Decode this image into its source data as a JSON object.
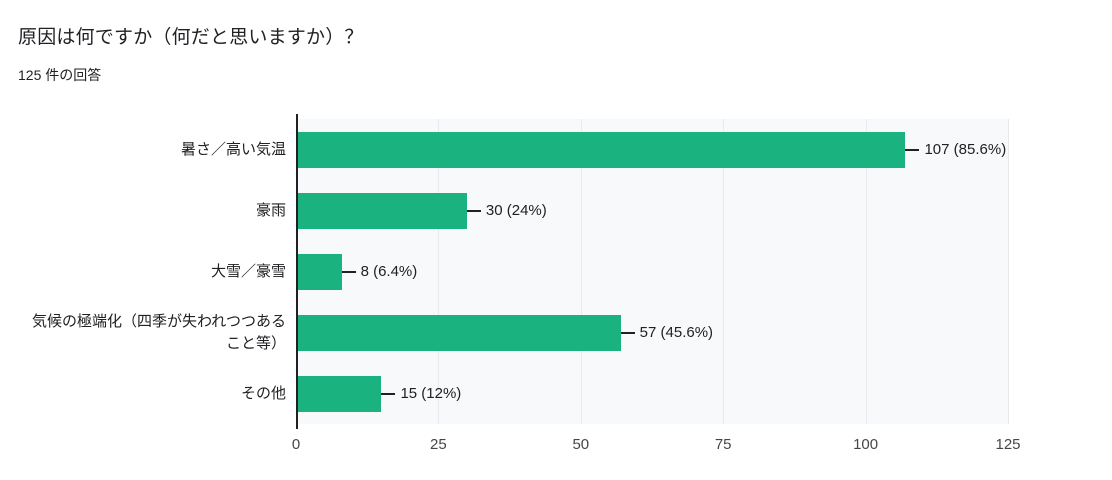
{
  "header": {
    "title": "原因は何ですか（何だと思いますか）？",
    "subtitle": "125 件の回答"
  },
  "chart_data": {
    "type": "bar",
    "orientation": "horizontal",
    "title": "原因は何ですか（何だと思いますか）？",
    "subtitle": "125 件の回答",
    "categories": [
      "暑さ／高い気温",
      "豪雨",
      "大雪／豪雪",
      "気候の極端化（四季が失われつつあること等）",
      "その他"
    ],
    "values": [
      107,
      30,
      8,
      57,
      15
    ],
    "value_labels": [
      "107 (85.6%)",
      "30 (24%)",
      "8 (6.4%)",
      "57 (45.6%)",
      "15 (12%)"
    ],
    "xticks": [
      0,
      25,
      50,
      75,
      100,
      125
    ],
    "xlim": [
      0,
      125
    ],
    "grid": true,
    "legend": "none",
    "bar_color": "#1ab27e",
    "plot_bg": "#f8f9fa",
    "grid_color": "#e8eaed",
    "axis_color": "#202124"
  }
}
